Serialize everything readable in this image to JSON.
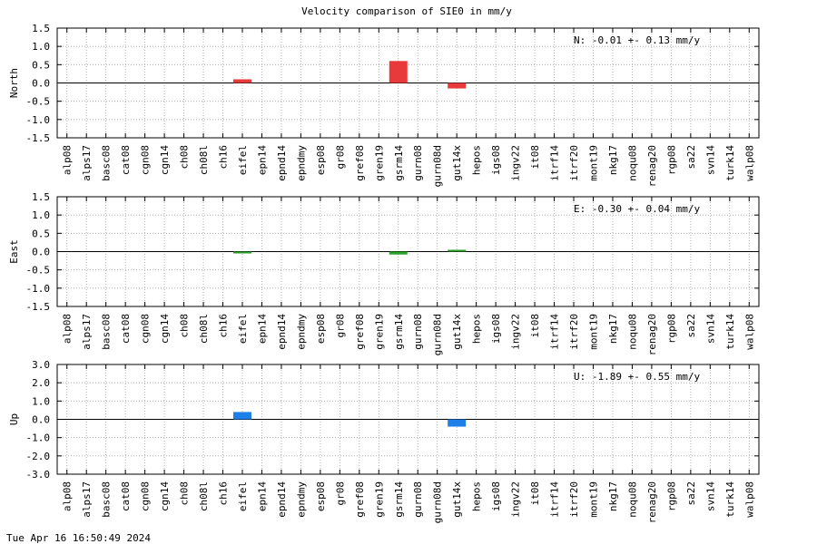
{
  "chart_data": {
    "title": "Velocity comparison of SIE0 in mm/y",
    "type": "bar",
    "grid": true,
    "categories": [
      "alp08",
      "alps17",
      "basc08",
      "cat08",
      "cgn08",
      "cgn14",
      "ch08",
      "ch08l",
      "ch16",
      "eifel",
      "epn14",
      "epnd14",
      "epndmy",
      "esp08",
      "gr08",
      "gref08",
      "gren19",
      "gsrm14",
      "gurn08",
      "gurn08d",
      "gut14x",
      "hepos",
      "igs08",
      "ingv22",
      "it08",
      "itrf14",
      "itrf20",
      "mont19",
      "nkg17",
      "noqu08",
      "renag20",
      "rgp08",
      "sa22",
      "svn14",
      "turk14",
      "walp08"
    ],
    "panels": [
      {
        "ylabel": "North",
        "ylim": [
          -1.5,
          1.5
        ],
        "yticks": [
          "-1.5",
          "-1.0",
          "-0.5",
          "0.0",
          "0.5",
          "1.0",
          "1.5"
        ],
        "ytick_values": [
          -1.5,
          -1.0,
          -0.5,
          0.0,
          0.5,
          1.0,
          1.5
        ],
        "color": "#e83a3a",
        "annotation": "N:  -0.01 +-  0.13 mm/y",
        "values": {
          "eifel": 0.1,
          "gsrm14": 0.6,
          "gut14x": -0.15
        }
      },
      {
        "ylabel": "East",
        "ylim": [
          -1.5,
          1.5
        ],
        "yticks": [
          "-1.5",
          "-1.0",
          "-0.5",
          "0.0",
          "0.5",
          "1.0",
          "1.5"
        ],
        "ytick_values": [
          -1.5,
          -1.0,
          -0.5,
          0.0,
          0.5,
          1.0,
          1.5
        ],
        "color": "#2ca02c",
        "annotation": "E:  -0.30 +-  0.04 mm/y",
        "values": {
          "eifel": -0.05,
          "gsrm14": -0.08,
          "gut14x": 0.05
        }
      },
      {
        "ylabel": "Up",
        "ylim": [
          -3.0,
          3.0
        ],
        "yticks": [
          "-3.0",
          "-2.0",
          "-1.0",
          "0.0",
          "1.0",
          "2.0",
          "3.0"
        ],
        "ytick_values": [
          -3.0,
          -2.0,
          -1.0,
          0.0,
          1.0,
          2.0,
          3.0
        ],
        "color": "#1f7fe8",
        "annotation": "U:  -1.89 +-  0.55 mm/y",
        "values": {
          "eifel": 0.4,
          "gut14x": -0.4
        }
      }
    ]
  },
  "footer": {
    "timestamp": "Tue Apr 16 16:50:49 2024"
  }
}
